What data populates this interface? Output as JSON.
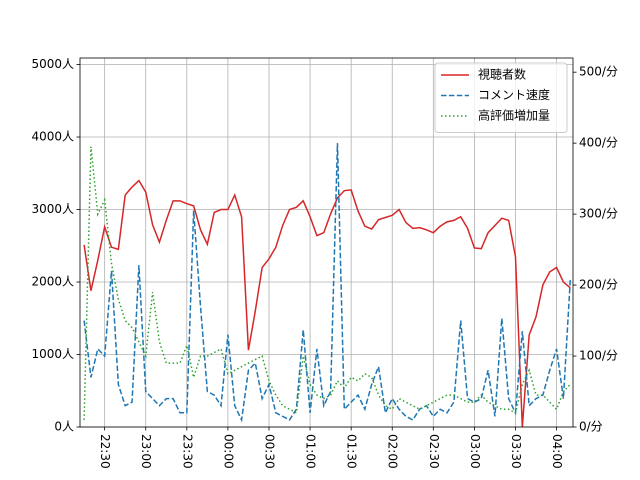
{
  "chart_data": {
    "type": "line",
    "x": [
      "22:15",
      "22:20",
      "22:25",
      "22:30",
      "22:35",
      "22:40",
      "22:45",
      "22:50",
      "22:55",
      "23:00",
      "23:05",
      "23:10",
      "23:15",
      "23:20",
      "23:25",
      "23:30",
      "23:35",
      "23:40",
      "23:45",
      "23:50",
      "23:55",
      "00:00",
      "00:05",
      "00:10",
      "00:15",
      "00:20",
      "00:25",
      "00:30",
      "00:35",
      "00:40",
      "00:45",
      "00:50",
      "00:55",
      "01:00",
      "01:05",
      "01:10",
      "01:15",
      "01:20",
      "01:25",
      "01:30",
      "01:35",
      "01:40",
      "01:45",
      "01:50",
      "01:55",
      "02:00",
      "02:05",
      "02:10",
      "02:15",
      "02:20",
      "02:25",
      "02:30",
      "02:35",
      "02:40",
      "02:45",
      "02:50",
      "02:55",
      "03:00",
      "03:05",
      "03:10",
      "03:15",
      "03:20",
      "03:25",
      "03:30",
      "03:35",
      "03:40",
      "03:45",
      "03:50",
      "03:55",
      "04:00",
      "04:05",
      "04:10"
    ],
    "xlim": [
      "22:12",
      "04:12"
    ],
    "xticks": [
      "22:30",
      "23:00",
      "23:30",
      "00:00",
      "00:30",
      "01:00",
      "01:30",
      "02:00",
      "02:30",
      "03:00",
      "03:30",
      "04:00"
    ],
    "ylim": [
      0,
      5090
    ],
    "yticks": [
      {
        "value": 0,
        "label": "0人"
      },
      {
        "value": 1000,
        "label": "1000人"
      },
      {
        "value": 2000,
        "label": "2000人"
      },
      {
        "value": 3000,
        "label": "3000人"
      },
      {
        "value": 4000,
        "label": "4000人"
      },
      {
        "value": 5000,
        "label": "5000人"
      }
    ],
    "y2lim": [
      0,
      520
    ],
    "y2ticks": [
      {
        "value": 0,
        "label": "0/分"
      },
      {
        "value": 100,
        "label": "100/分"
      },
      {
        "value": 200,
        "label": "200/分"
      },
      {
        "value": 300,
        "label": "300/分"
      },
      {
        "value": 400,
        "label": "400/分"
      },
      {
        "value": 500,
        "label": "500/分"
      }
    ],
    "grid": true,
    "legend": "upper right",
    "series": [
      {
        "name": "視聴者数",
        "color": "#d62728",
        "style": "solid",
        "axis": "y",
        "values": [
          2510,
          1880,
          2300,
          2760,
          2480,
          2450,
          3200,
          3310,
          3400,
          3240,
          2790,
          2550,
          2850,
          3120,
          3120,
          3080,
          3050,
          2720,
          2520,
          2960,
          3000,
          3000,
          3200,
          2900,
          1060,
          1600,
          2200,
          2320,
          2480,
          2780,
          3000,
          3030,
          3120,
          2900,
          2640,
          2680,
          2940,
          3160,
          3260,
          3270,
          2980,
          2770,
          2730,
          2860,
          2890,
          2920,
          3000,
          2820,
          2740,
          2750,
          2720,
          2680,
          2770,
          2830,
          2850,
          2900,
          2740,
          2470,
          2460,
          2680,
          2780,
          2880,
          2850,
          2350,
          0,
          1270,
          1520,
          1960,
          2140,
          2200,
          2000,
          1920
        ]
      },
      {
        "name": "コメント速度",
        "color": "#1f77b4",
        "style": "dashed",
        "axis": "y2",
        "values": [
          150,
          70,
          110,
          100,
          220,
          60,
          30,
          35,
          228,
          50,
          40,
          30,
          40,
          40,
          20,
          20,
          305,
          170,
          50,
          45,
          30,
          130,
          30,
          10,
          80,
          90,
          40,
          60,
          20,
          15,
          10,
          25,
          137,
          20,
          110,
          30,
          50,
          400,
          25,
          35,
          45,
          25,
          60,
          85,
          20,
          40,
          25,
          15,
          10,
          25,
          30,
          15,
          25,
          20,
          35,
          150,
          40,
          35,
          40,
          80,
          15,
          153,
          40,
          20,
          135,
          30,
          40,
          45,
          80,
          110,
          40,
          207
        ]
      },
      {
        "name": "高評価増加量",
        "color": "#2ca02c",
        "style": "dotted",
        "axis": "y2",
        "values": [
          10,
          395,
          300,
          320,
          230,
          180,
          150,
          140,
          120,
          100,
          190,
          120,
          90,
          90,
          90,
          115,
          70,
          100,
          100,
          105,
          110,
          75,
          80,
          85,
          90,
          95,
          100,
          65,
          45,
          30,
          25,
          20,
          100,
          60,
          45,
          40,
          45,
          65,
          55,
          70,
          65,
          75,
          70,
          45,
          30,
          25,
          40,
          35,
          30,
          25,
          30,
          35,
          40,
          45,
          45,
          40,
          35,
          35,
          45,
          35,
          30,
          25,
          25,
          20,
          60,
          80,
          45,
          45,
          35,
          25,
          50,
          60
        ]
      }
    ]
  }
}
